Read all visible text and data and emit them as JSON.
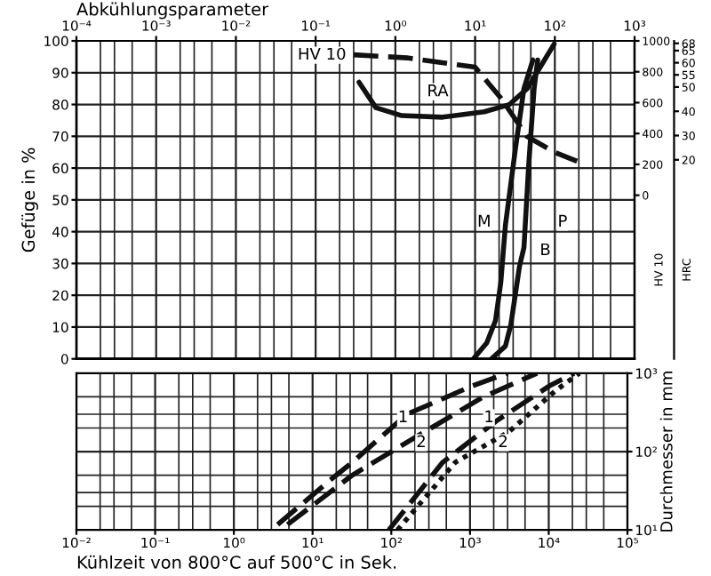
{
  "chart_data": [
    {
      "type": "line",
      "xlabel": "Abkühlungsparameter",
      "ylabel": "Gefüge in %",
      "y2label": "HV 10",
      "y3label": "HRC",
      "log": "x",
      "grid": true,
      "xlim": [
        0.0001,
        1000
      ],
      "xticks": [
        {
          "value": 0.0001,
          "label": "10⁻⁴"
        },
        {
          "value": 0.001,
          "label": "10⁻³"
        },
        {
          "value": 0.01,
          "label": "10⁻²"
        },
        {
          "value": 0.1,
          "label": "10⁻¹"
        },
        {
          "value": 1,
          "label": "10⁰"
        },
        {
          "value": 10,
          "label": "10¹"
        },
        {
          "value": 100,
          "label": "10²"
        },
        {
          "value": 1000,
          "label": "10³"
        }
      ],
      "ylim": [
        0,
        100
      ],
      "yticks": [
        0,
        10,
        20,
        30,
        40,
        50,
        60,
        70,
        80,
        90,
        100
      ],
      "y2lim": [
        -1060,
        1000
      ],
      "y2ticks": [
        0,
        200,
        400,
        600,
        800,
        1000
      ],
      "y3lim": [
        -62,
        69
      ],
      "y3ticks": [
        20,
        30,
        40,
        50,
        55,
        60,
        65,
        68
      ],
      "series": [
        {
          "color": "#111111",
          "line_style": "solid",
          "x": [
            0.35,
            0.57,
            1.2,
            3.9,
            13,
            27,
            45,
            76,
            98
          ],
          "values": [
            87,
            79,
            76.5,
            76,
            77.7,
            80,
            85,
            94.4,
            99
          ]
        },
        {
          "color": "#111111",
          "line_style": "dashed",
          "axis": "y2",
          "x": [
            0.3,
            1.4,
            10,
            21,
            45,
            98,
            190
          ],
          "values": [
            910,
            890,
            830,
            630,
            380,
            280,
            220
          ]
        },
        {
          "color": "#111111",
          "line_style": "solid",
          "x": [
            9.5,
            14,
            18,
            21,
            24,
            32,
            41,
            53
          ],
          "values": [
            0,
            5,
            12,
            24,
            42,
            66,
            85,
            94
          ]
        },
        {
          "color": "#111111",
          "line_style": "solid",
          "x": [
            16,
            24,
            28,
            36,
            41,
            47,
            55,
            61
          ],
          "values": [
            0,
            4,
            10.6,
            29,
            35,
            61,
            85,
            94
          ]
        }
      ],
      "annotations": [
        {
          "text": "HV 10",
          "x": 0.12,
          "y": 95.5
        },
        {
          "text": "RA",
          "x": 3.4,
          "y": 84
        },
        {
          "text": "M",
          "x": 13,
          "y": 43
        },
        {
          "text": "P",
          "x": 125,
          "y": 43
        },
        {
          "text": "B",
          "x": 76,
          "y": 34
        }
      ]
    },
    {
      "type": "line",
      "xlabel": "Kühlzeit von 800°C auf 500°C in Sek.",
      "ylabel": "Durchmesser in mm",
      "log": "xy",
      "grid": true,
      "xlim": [
        0.01,
        100000
      ],
      "xticks": [
        {
          "value": 0.01,
          "label": "10⁻²"
        },
        {
          "value": 0.1,
          "label": "10⁻¹"
        },
        {
          "value": 1,
          "label": "10⁰"
        },
        {
          "value": 10,
          "label": "10¹"
        },
        {
          "value": 100,
          "label": "10²"
        },
        {
          "value": 1000,
          "label": "10³"
        },
        {
          "value": 10000,
          "label": "10⁴"
        },
        {
          "value": 100000,
          "label": "10⁵"
        }
      ],
      "ylim": [
        10,
        1000
      ],
      "yticks": [
        {
          "value": 10,
          "label": "10¹"
        },
        {
          "value": 100,
          "label": "10²"
        },
        {
          "value": 1000,
          "label": "10³"
        }
      ],
      "series": [
        {
          "color": "#111111",
          "line_style": "dashed",
          "x": [
            3.6,
            16.6,
            32,
            158,
            1070,
            3000
          ],
          "values": [
            11.7,
            43,
            73,
            300,
            690,
            1000
          ]
        },
        {
          "color": "#111111",
          "line_style": "dashed",
          "x": [
            4.8,
            32,
            263,
            1480,
            7100
          ],
          "values": [
            11.7,
            50,
            178,
            500,
            1000
          ]
        },
        {
          "color": "#111111",
          "line_style": "dashed",
          "x": [
            93,
            450,
            2150,
            10200,
            21000
          ],
          "values": [
            10,
            73,
            245,
            690,
            1000
          ]
        },
        {
          "color": "#111111",
          "line_style": "dotted",
          "x": [
            120,
            650,
            3100,
            12000,
            24500
          ],
          "values": [
            10,
            73,
            178,
            590,
            1000
          ]
        }
      ],
      "annotations": [
        {
          "text": "1",
          "x": 141,
          "y": 270
        },
        {
          "text": "2",
          "x": 240,
          "y": 130
        },
        {
          "text": "1",
          "x": 1740,
          "y": 270
        },
        {
          "text": "2",
          "x": 2630,
          "y": 130
        }
      ]
    }
  ]
}
